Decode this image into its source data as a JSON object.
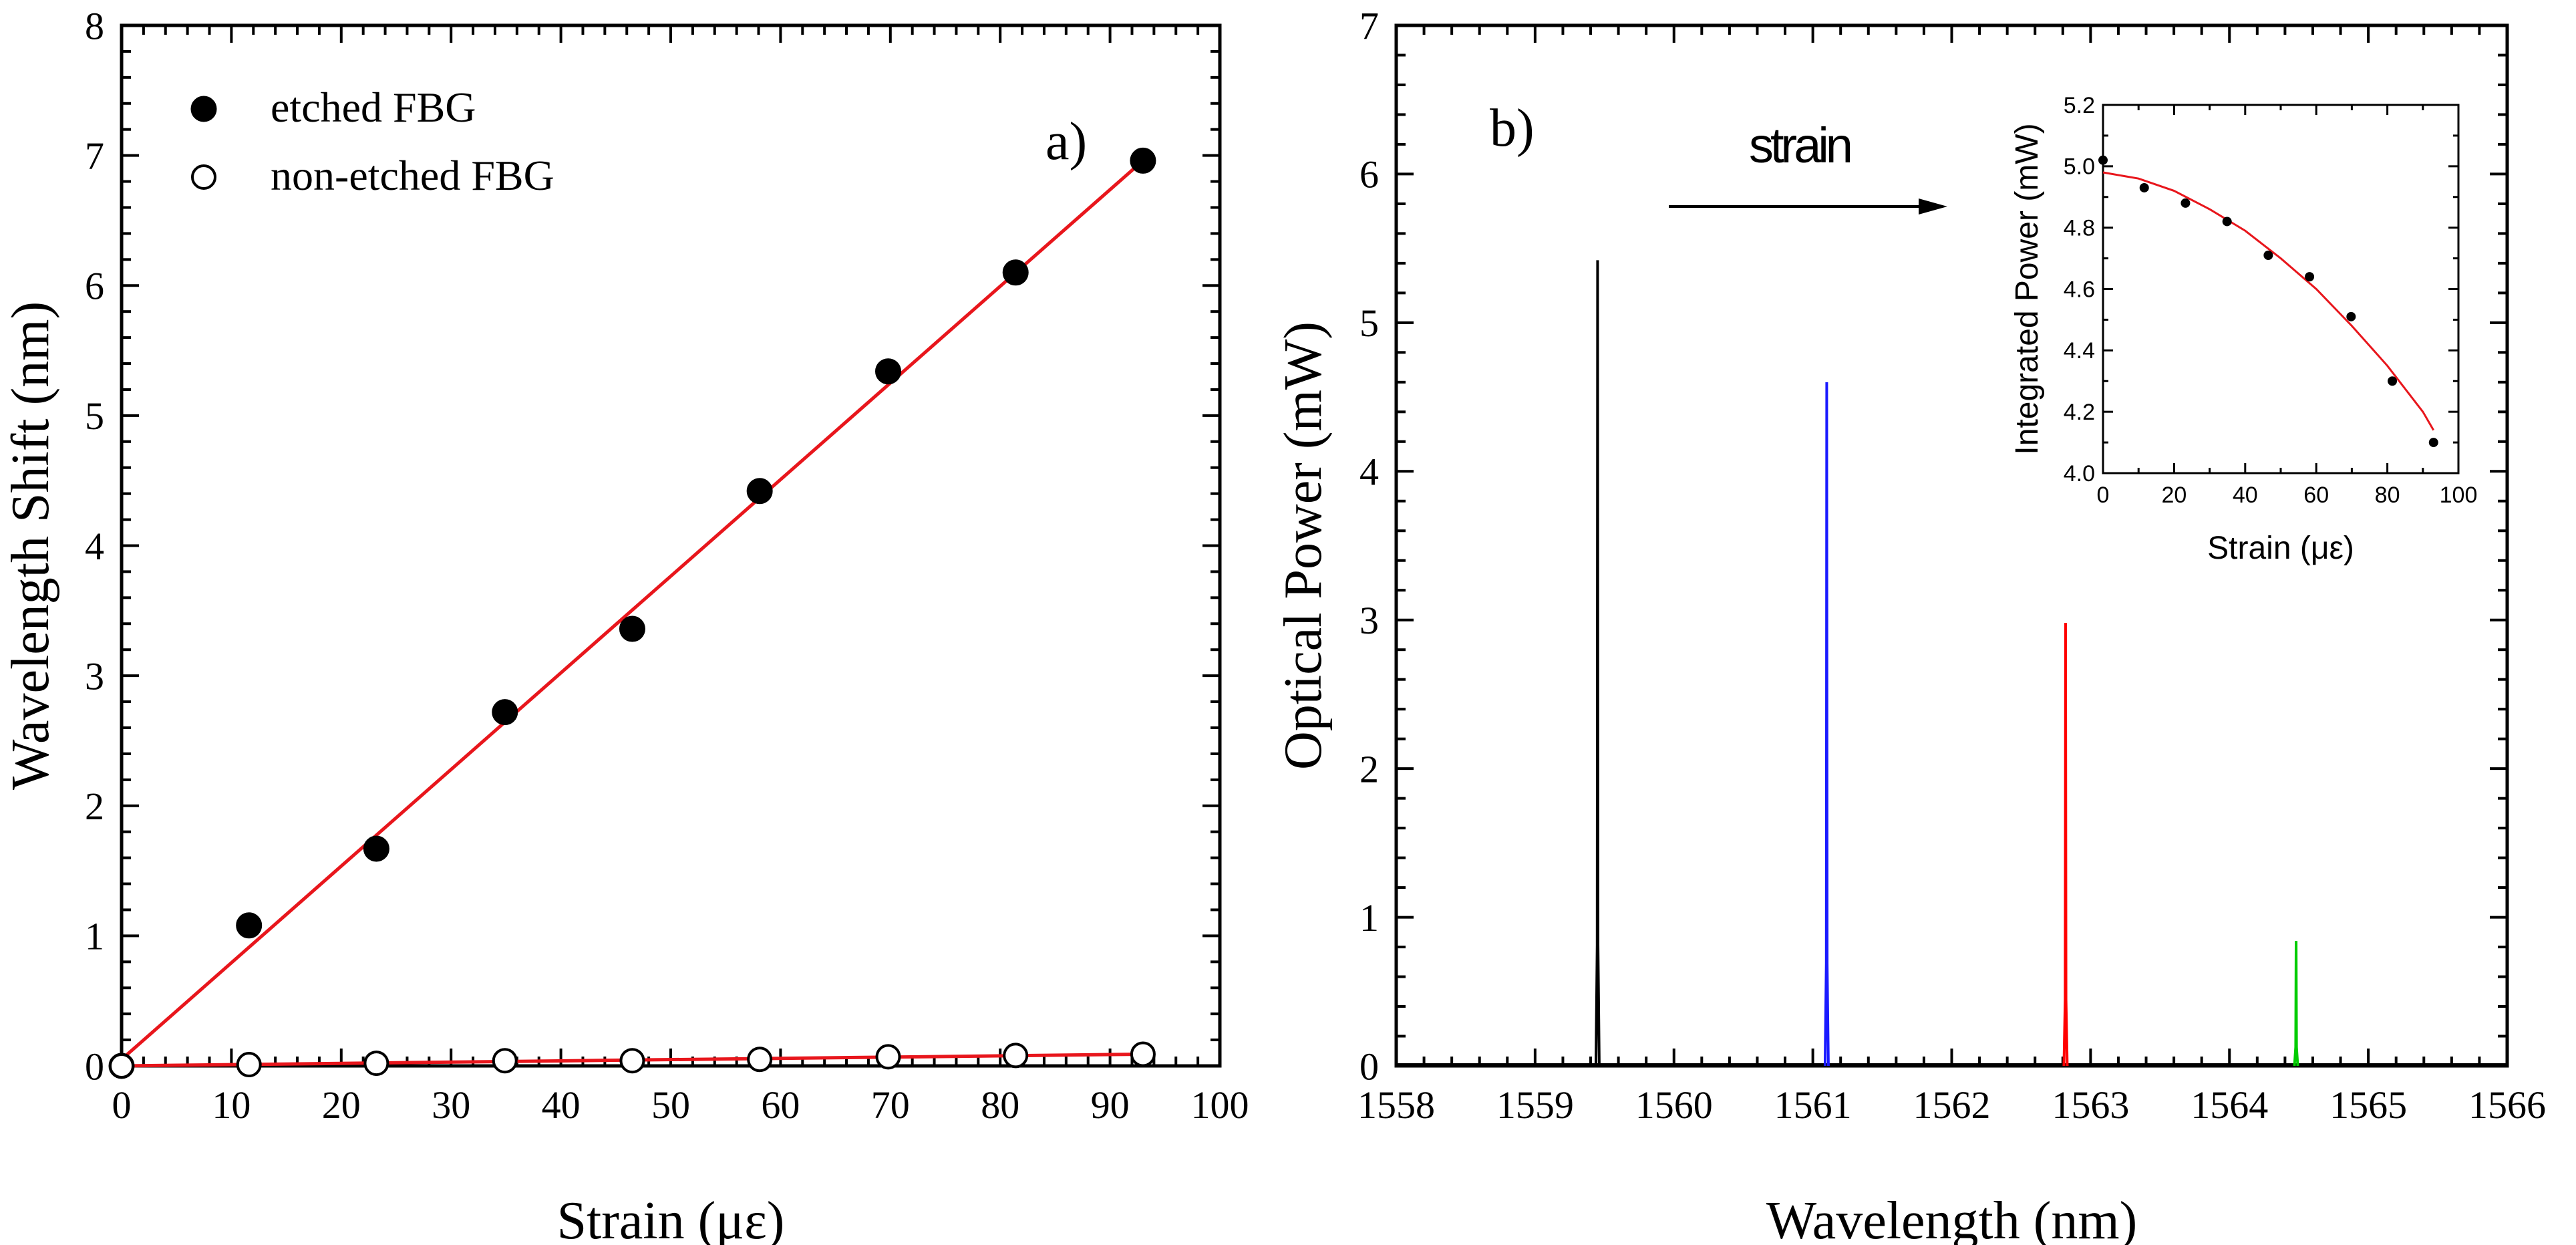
{
  "chart_data": [
    {
      "id": "panel_a",
      "type": "scatter",
      "panel_label": "a)",
      "xlabel": "Strain (με)",
      "ylabel": "Wavelength Shift (nm)",
      "xlim": [
        0,
        100
      ],
      "ylim": [
        0,
        8
      ],
      "xticks": [
        0,
        10,
        20,
        30,
        40,
        50,
        60,
        70,
        80,
        90,
        100
      ],
      "yticks": [
        0,
        1,
        2,
        3,
        4,
        5,
        6,
        7,
        8
      ],
      "legend": [
        "etched FBG",
        "non-etched FBG"
      ],
      "legend_position": "top-left",
      "series": [
        {
          "name": "etched FBG",
          "marker": "filled-circle",
          "x": [
            0,
            11.6,
            23.2,
            34.9,
            46.5,
            58.1,
            69.8,
            81.4,
            93.0
          ],
          "y": [
            0.0,
            1.08,
            1.67,
            2.72,
            3.36,
            4.42,
            5.34,
            6.1,
            6.96
          ],
          "fit": {
            "type": "linear",
            "x": [
              0,
              93
            ],
            "y": [
              0.05,
              6.96
            ],
            "color": "#e8161c"
          }
        },
        {
          "name": "non-etched FBG",
          "marker": "open-circle",
          "x": [
            0,
            11.6,
            23.2,
            34.9,
            46.5,
            58.1,
            69.8,
            81.4,
            93.0
          ],
          "y": [
            0.0,
            0.01,
            0.02,
            0.04,
            0.04,
            0.05,
            0.07,
            0.08,
            0.09
          ],
          "fit": {
            "type": "linear",
            "x": [
              0,
              93
            ],
            "y": [
              0.0,
              0.09
            ],
            "color": "#e8161c"
          }
        }
      ]
    },
    {
      "id": "panel_b",
      "type": "line",
      "panel_label": "b)",
      "xlabel": "Wavelength (nm)",
      "ylabel": "Optical Power (mW)",
      "xlim": [
        1558,
        1566
      ],
      "ylim": [
        0,
        7
      ],
      "xticks": [
        1558,
        1559,
        1560,
        1561,
        1562,
        1563,
        1564,
        1565,
        1566
      ],
      "yticks": [
        0,
        1,
        2,
        3,
        4,
        5,
        6,
        7
      ],
      "annotation": "strain",
      "peaks": [
        {
          "center": 1559.45,
          "height": 5.42,
          "color": "#000000"
        },
        {
          "center": 1561.1,
          "height": 4.6,
          "color": "#1a1aff"
        },
        {
          "center": 1562.82,
          "height": 2.98,
          "color": "#ff0000"
        },
        {
          "center": 1564.48,
          "height": 0.84,
          "color": "#00cc00"
        }
      ]
    },
    {
      "id": "panel_b_inset",
      "type": "scatter",
      "xlabel": "Strain (με)",
      "ylabel": "Integrated Power (mW)",
      "xlim": [
        0,
        100
      ],
      "ylim": [
        4.0,
        5.2
      ],
      "xticks": [
        0,
        20,
        40,
        60,
        80,
        100
      ],
      "yticks": [
        4.0,
        4.2,
        4.4,
        4.6,
        4.8,
        5.0,
        5.2
      ],
      "series": [
        {
          "name": "integrated power",
          "marker": "filled-dot",
          "x": [
            0,
            11.6,
            23.2,
            34.9,
            46.5,
            58.1,
            69.8,
            81.4,
            93.0
          ],
          "y": [
            5.02,
            4.93,
            4.88,
            4.82,
            4.71,
            4.64,
            4.51,
            4.3,
            4.1
          ],
          "fit": {
            "type": "quadratic",
            "x": [
              0,
              10,
              20,
              30,
              40,
              50,
              60,
              70,
              80,
              90,
              93
            ],
            "y": [
              4.98,
              4.96,
              4.92,
              4.86,
              4.79,
              4.7,
              4.6,
              4.48,
              4.35,
              4.2,
              4.14
            ],
            "color": "#e8161c"
          }
        }
      ]
    }
  ]
}
